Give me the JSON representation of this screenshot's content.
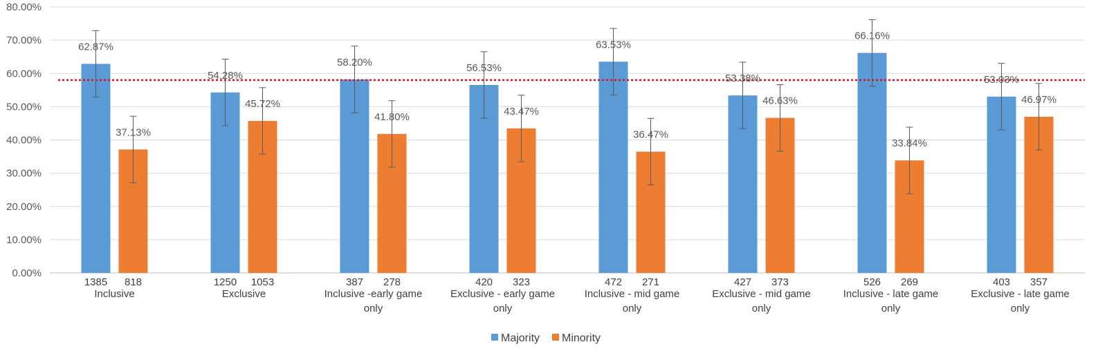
{
  "chart_data": {
    "type": "bar",
    "title": "",
    "xlabel": "",
    "ylabel": "",
    "ylim": [
      0,
      80
    ],
    "yticks": [
      0,
      10,
      20,
      30,
      40,
      50,
      60,
      70,
      80
    ],
    "ytick_labels": [
      "0.00%",
      "10.00%",
      "20.00%",
      "30.00%",
      "40.00%",
      "50.00%",
      "60.00%",
      "70.00%",
      "80.00%"
    ],
    "grid": true,
    "reference_line": {
      "value": 58,
      "style": "dotted",
      "color": "#e0101a"
    },
    "categories": [
      [
        "Inclusive"
      ],
      [
        "Exclusive"
      ],
      [
        "Inclusive -early game",
        "only"
      ],
      [
        "Exclusive - early game",
        "only"
      ],
      [
        "Inclusive - mid game",
        "only"
      ],
      [
        "Exclusive - mid game",
        "only"
      ],
      [
        "Inclusive - late game",
        "only"
      ],
      [
        "Exclusive - late game",
        "only"
      ]
    ],
    "series": [
      {
        "name": "Majority",
        "color": "#5b9bd5",
        "values": [
          62.87,
          54.28,
          58.2,
          56.53,
          63.53,
          53.38,
          66.16,
          53.03
        ],
        "labels": [
          "62.87%",
          "54.28%",
          "58.20%",
          "56.53%",
          "63.53%",
          "53.38%",
          "66.16%",
          "53.03%"
        ],
        "counts": [
          "1385",
          "1250",
          "387",
          "420",
          "472",
          "427",
          "526",
          "403"
        ],
        "error": 10
      },
      {
        "name": "Minority",
        "color": "#ed7d31",
        "values": [
          37.13,
          45.72,
          41.8,
          43.47,
          36.47,
          46.63,
          33.84,
          46.97
        ],
        "labels": [
          "37.13%",
          "45.72%",
          "41.80%",
          "43.47%",
          "36.47%",
          "46.63%",
          "33.84%",
          "46.97%"
        ],
        "counts": [
          "818",
          "1053",
          "278",
          "323",
          "271",
          "373",
          "269",
          "357"
        ],
        "error": 10
      }
    ],
    "legend": {
      "position": "bottom",
      "items": [
        "Majority",
        "Minority"
      ]
    }
  }
}
